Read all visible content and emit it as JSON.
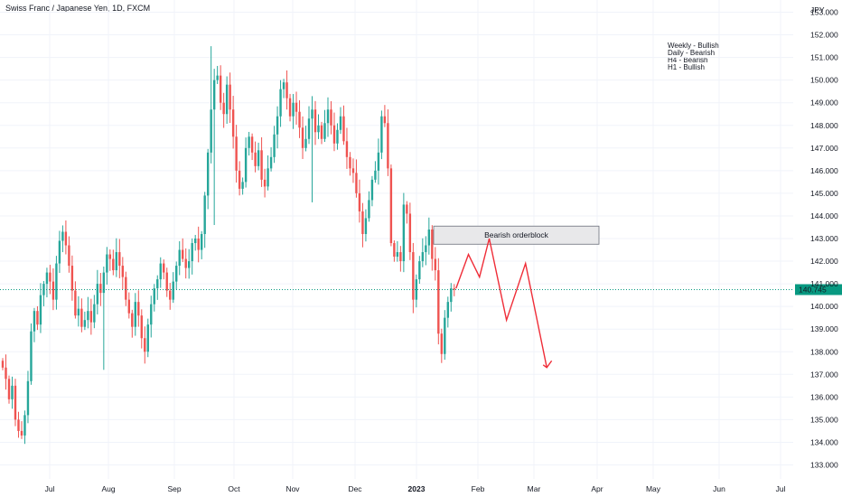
{
  "header": {
    "title": "Swiss Franc / Japanese Yen, 1D, FXCM"
  },
  "notes": [
    "Weekly - Bullish",
    "Daily - Bearish",
    "H4 - Bearish",
    "H1 - Bullish"
  ],
  "colors": {
    "up": "#26a69a",
    "down": "#ef5350",
    "orderblock_fill": "#e8e8ea",
    "projection": "#ef2d38",
    "price_tag": "#089981"
  },
  "chart_data": {
    "type": "candlestick",
    "title": "Swiss Franc / Japanese Yen, 1D, FXCM",
    "currency": "JPY",
    "ylim": [
      133.0,
      153.0
    ],
    "y_ticks": [
      "133.000",
      "134.000",
      "135.000",
      "136.000",
      "137.000",
      "138.000",
      "139.000",
      "140.000",
      "141.000",
      "142.000",
      "143.000",
      "144.000",
      "145.000",
      "146.000",
      "147.000",
      "148.000",
      "149.000",
      "150.000",
      "151.000",
      "152.000",
      "153.000"
    ],
    "x_ticks": [
      "Jul",
      "Aug",
      "Sep",
      "Oct",
      "Nov",
      "Dec",
      "2023",
      "Feb",
      "Mar",
      "Apr",
      "May",
      "Jun",
      "Jul"
    ],
    "last_price": "140.745",
    "closes": [
      137.3,
      136.8,
      135.9,
      136.5,
      135.0,
      134.5,
      134.3,
      135.2,
      136.7,
      138.9,
      139.8,
      139.2,
      140.5,
      141.0,
      141.5,
      141.1,
      140.3,
      141.9,
      142.9,
      143.3,
      142.7,
      141.8,
      140.7,
      139.6,
      139.9,
      139.1,
      139.4,
      139.8,
      139.3,
      140.1,
      141.0,
      140.6,
      141.5,
      142.3,
      142.1,
      141.6,
      142.4,
      141.8,
      141.3,
      140.3,
      139.7,
      139.1,
      140.2,
      139.6,
      138.6,
      138.0,
      139.2,
      140.1,
      140.8,
      141.2,
      141.9,
      141.5,
      140.7,
      140.3,
      141.1,
      141.8,
      142.5,
      142.1,
      141.7,
      142.0,
      142.8,
      143.0,
      142.5,
      143.2,
      144.9,
      146.8,
      148.7,
      150.0,
      150.2,
      149.0,
      148.5,
      149.8,
      148.7,
      147.5,
      146.0,
      145.2,
      145.5,
      147.0,
      147.5,
      146.8,
      146.2,
      146.9,
      145.6,
      145.3,
      146.1,
      146.6,
      147.6,
      148.4,
      149.6,
      149.9,
      149.2,
      148.4,
      149.0,
      148.6,
      147.9,
      147.0,
      147.4,
      148.3,
      148.7,
      147.7,
      148.0,
      147.4,
      148.1,
      148.7,
      148.0,
      147.2,
      147.8,
      148.4,
      147.3,
      146.6,
      146.1,
      145.9,
      145.0,
      144.2,
      143.2,
      143.9,
      144.7,
      145.6,
      146.0,
      146.8,
      148.4,
      148.1,
      146.1,
      142.8,
      142.2,
      142.4,
      142.0,
      144.5,
      144.1,
      142.4,
      140.3,
      141.2,
      142.0,
      142.4,
      142.7,
      143.4,
      142.1,
      141.6,
      138.8,
      137.9,
      139.5,
      140.2,
      140.8,
      140.745
    ],
    "orderblock": {
      "label": "Bearish orderblock",
      "top": 143.55,
      "bottom": 142.75
    },
    "projection_path": [
      [
        140.8,
        0
      ],
      [
        142.3,
        2.8
      ],
      [
        141.3,
        5.3
      ],
      [
        143.0,
        7.5
      ],
      [
        139.4,
        11.4
      ],
      [
        141.9,
        15.7
      ],
      [
        137.3,
        20.5
      ]
    ],
    "projection_arrowhead": [
      [
        137.6,
        21.6
      ]
    ]
  }
}
